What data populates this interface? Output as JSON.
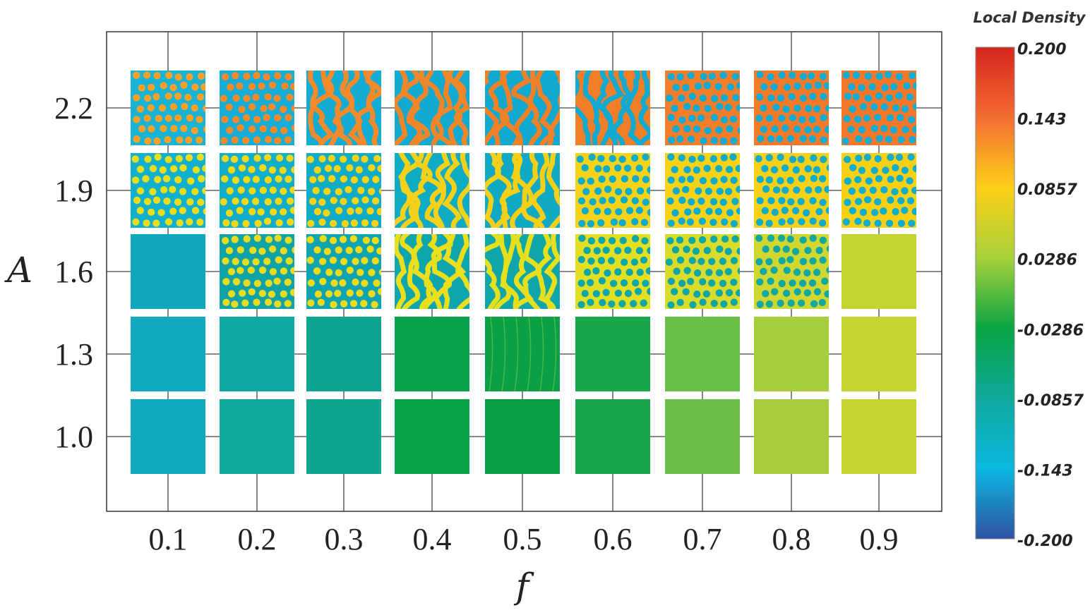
{
  "chart_data": {
    "type": "heatmap",
    "xlabel": "f",
    "ylabel": "A",
    "x": [
      "0.1",
      "0.2",
      "0.3",
      "0.4",
      "0.5",
      "0.6",
      "0.7",
      "0.8",
      "0.9"
    ],
    "y": [
      "2.2",
      "1.9",
      "1.6",
      "1.3",
      "1.0"
    ],
    "colorbar": {
      "title": "Local Density",
      "ticks": [
        "0.200",
        "0.143",
        "0.0857",
        "0.0286",
        "-0.0286",
        "-0.0857",
        "-0.143",
        "-0.200"
      ],
      "range": [
        -0.2,
        0.2
      ],
      "colors": [
        "#d7261e",
        "#f46d32",
        "#fdd017",
        "#a6d13a",
        "#0aa543",
        "#0fa99c",
        "#0bb8e0",
        "#2f51a3"
      ]
    },
    "cells": [
      [
        {
          "pattern": "dots",
          "bg": "#19b3d6",
          "fg": "#f7a02a"
        },
        {
          "pattern": "dots",
          "bg": "#16aed6",
          "fg": "#f48a2b"
        },
        {
          "pattern": "stripes",
          "bg": "#14acd2",
          "fg": "#f38a2b"
        },
        {
          "pattern": "stripes",
          "bg": "#12aad0",
          "fg": "#f0862a"
        },
        {
          "pattern": "stripes",
          "bg": "#11a9cf",
          "fg": "#ef8229"
        },
        {
          "pattern": "stripes",
          "bg": "#f17f2a",
          "fg": "#12aad0"
        },
        {
          "pattern": "dots",
          "bg": "#f27d2a",
          "fg": "#13abd1"
        },
        {
          "pattern": "dots",
          "bg": "#f47a2a",
          "fg": "#14acd2"
        },
        {
          "pattern": "dots",
          "bg": "#f4772a",
          "fg": "#15add3"
        }
      ],
      [
        {
          "pattern": "dots",
          "bg": "#12b0cf",
          "fg": "#e8de1e"
        },
        {
          "pattern": "dots",
          "bg": "#11aecb",
          "fg": "#f0d81b"
        },
        {
          "pattern": "dots",
          "bg": "#10abc7",
          "fg": "#f4d41a"
        },
        {
          "pattern": "stripes",
          "bg": "#0faac4",
          "fg": "#f5d219"
        },
        {
          "pattern": "stripes",
          "bg": "#0fa9c3",
          "fg": "#f6d018"
        },
        {
          "pattern": "dots",
          "bg": "#f4d31a",
          "fg": "#10abc5"
        },
        {
          "pattern": "dots",
          "bg": "#f6d218",
          "fg": "#10abc6"
        },
        {
          "pattern": "dots",
          "bg": "#f7d117",
          "fg": "#11acc7"
        },
        {
          "pattern": "dots",
          "bg": "#f8d016",
          "fg": "#12adc8"
        }
      ],
      [
        {
          "pattern": "flat",
          "bg": "#10a7bd"
        },
        {
          "pattern": "dots",
          "bg": "#0fa3a7",
          "fg": "#e6dd22"
        },
        {
          "pattern": "dots",
          "bg": "#0ea4b2",
          "fg": "#eedb1c"
        },
        {
          "pattern": "stripes",
          "bg": "#0ea5ad",
          "fg": "#e9df1d"
        },
        {
          "pattern": "stripes",
          "bg": "#0ea6a8",
          "fg": "#e4e01f"
        },
        {
          "pattern": "dots",
          "bg": "#e3df22",
          "fg": "#0ea6a6"
        },
        {
          "pattern": "dots",
          "bg": "#d9dc2a",
          "fg": "#0fa6a4"
        },
        {
          "pattern": "dots",
          "bg": "#cfd730",
          "fg": "#11a8a2"
        },
        {
          "pattern": "flat",
          "bg": "#c4d432"
        }
      ],
      [
        {
          "pattern": "flat",
          "bg": "#10a9bf"
        },
        {
          "pattern": "flat",
          "bg": "#0ea8a3"
        },
        {
          "pattern": "flat",
          "bg": "#0da591"
        },
        {
          "pattern": "flat",
          "bg": "#09a24a"
        },
        {
          "pattern": "faint",
          "bg": "#0ba046",
          "fg": "#5cbd4a"
        },
        {
          "pattern": "flat",
          "bg": "#1aa64a"
        },
        {
          "pattern": "flat",
          "bg": "#6abf48"
        },
        {
          "pattern": "flat",
          "bg": "#a6cd3c"
        },
        {
          "pattern": "flat",
          "bg": "#c6d533"
        }
      ],
      [
        {
          "pattern": "flat",
          "bg": "#10a9bd"
        },
        {
          "pattern": "flat",
          "bg": "#0fa9a0"
        },
        {
          "pattern": "flat",
          "bg": "#0ea68f"
        },
        {
          "pattern": "flat",
          "bg": "#0aa246"
        },
        {
          "pattern": "flat",
          "bg": "#0a9f44"
        },
        {
          "pattern": "flat",
          "bg": "#1ba64b"
        },
        {
          "pattern": "flat",
          "bg": "#6bbf48"
        },
        {
          "pattern": "flat",
          "bg": "#a8cd3c"
        },
        {
          "pattern": "flat",
          "bg": "#c6d533"
        }
      ]
    ]
  }
}
